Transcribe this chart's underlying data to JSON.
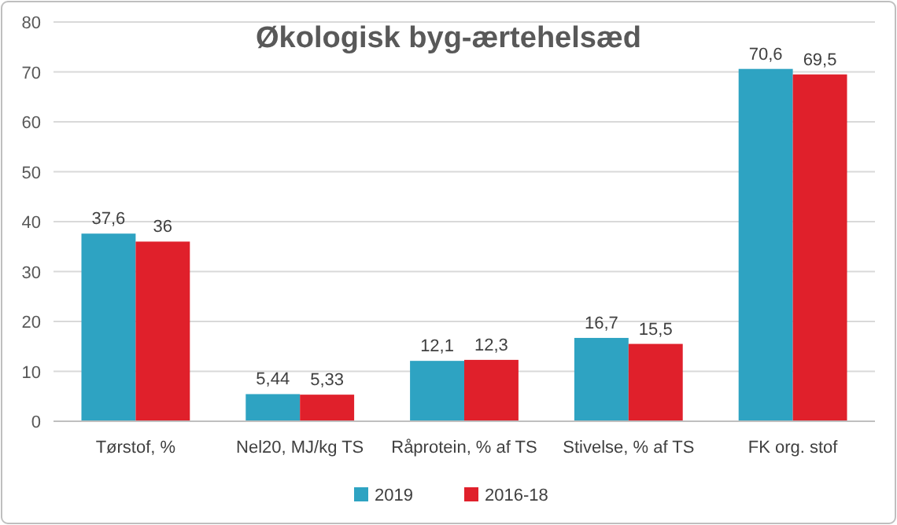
{
  "chart_data": {
    "type": "bar",
    "title": "Økologisk byg-ærtehelsæd",
    "categories": [
      "Tørstof, %",
      "Nel20, MJ/kg TS",
      "Råprotein, % af TS",
      "Stivelse, % af TS",
      "FK org. stof"
    ],
    "series": [
      {
        "name": "2019",
        "color": "#2ea3c2",
        "values": [
          37.6,
          5.44,
          12.1,
          16.7,
          70.6
        ],
        "value_labels": [
          "37,6",
          "5,44",
          "12,1",
          "16,7",
          "70,6"
        ]
      },
      {
        "name": "2016-18",
        "color": "#e0202b",
        "values": [
          36,
          5.33,
          12.3,
          15.5,
          69.5
        ],
        "value_labels": [
          "36",
          "5,33",
          "12,3",
          "15,5",
          "69,5"
        ]
      }
    ],
    "ylim": [
      0,
      80
    ],
    "yticks": [
      0,
      10,
      20,
      30,
      40,
      50,
      60,
      70,
      80
    ],
    "grid": "y",
    "legend": "bottom"
  }
}
